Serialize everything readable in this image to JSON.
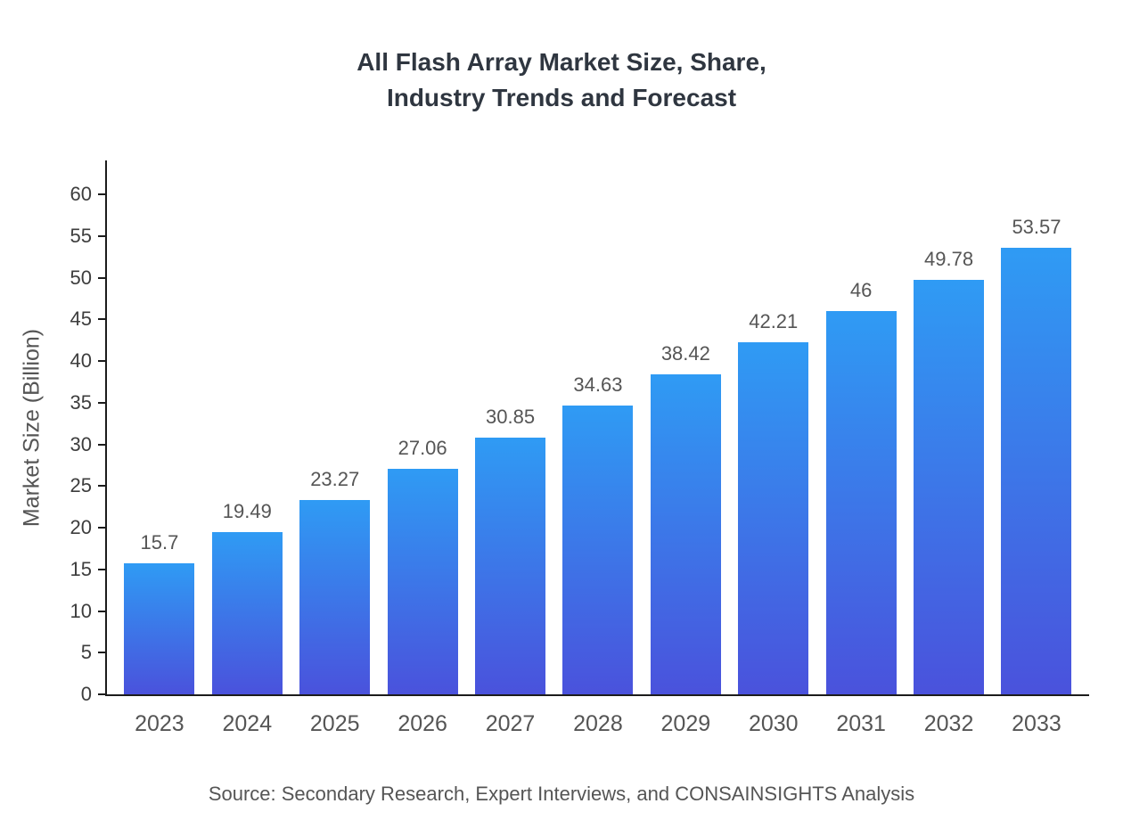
{
  "title": {
    "line1": "All Flash Array Market Size, Share,",
    "line2": "Industry Trends and Forecast"
  },
  "source": "Source: Secondary Research, Expert Interviews, and CONSAINSIGHTS Analysis",
  "chart_data": {
    "type": "bar",
    "title": "All Flash Array Market Size, Share, Industry Trends and Forecast",
    "categories": [
      "2023",
      "2024",
      "2025",
      "2026",
      "2027",
      "2028",
      "2029",
      "2030",
      "2031",
      "2032",
      "2033"
    ],
    "values": [
      15.7,
      19.49,
      23.27,
      27.06,
      30.85,
      34.63,
      38.42,
      42.21,
      46,
      49.78,
      53.57
    ],
    "data_labels": [
      "15.7",
      "19.49",
      "23.27",
      "27.06",
      "30.85",
      "34.63",
      "38.42",
      "42.21",
      "46",
      "49.78",
      "53.57"
    ],
    "xlabel": "",
    "ylabel": "Market Size (Billion)",
    "ylim": [
      0,
      64
    ],
    "yticks": [
      0,
      5,
      10,
      15,
      20,
      25,
      30,
      35,
      40,
      45,
      50,
      55,
      60
    ],
    "grid": false,
    "legend": "none",
    "bar_gradient_top": "#2f9bf4",
    "bar_gradient_bottom": "#4a52dc",
    "axis_color": "#1c1c1c",
    "tick_text_color": "#3d3d3d",
    "label_text_color": "#555555",
    "title_color": "#2f3640"
  }
}
